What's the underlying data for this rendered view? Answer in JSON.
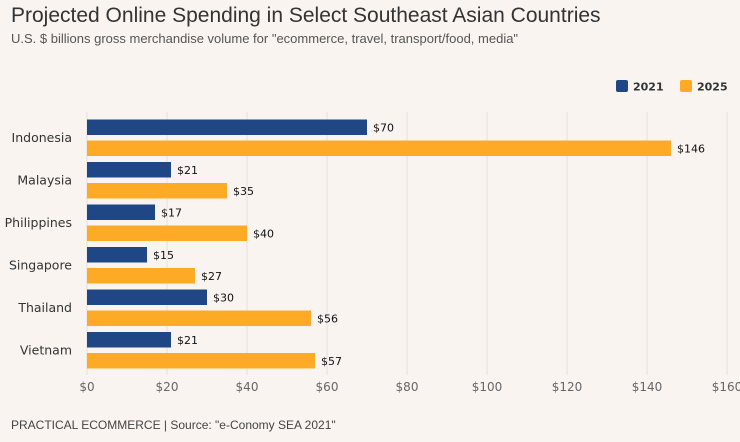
{
  "header": {
    "title": "Projected Online Spending in Select Southeast Asian Countries",
    "subtitle": "U.S. $ billions gross merchandise volume for \"ecommerce, travel, transport/food, media\""
  },
  "footer": {
    "text": "PRACTICAL ECOMMERCE | Source: \"e-Conomy SEA 2021\""
  },
  "colors": {
    "series_2021": "#1f4785",
    "series_2025": "#fdab27",
    "grid": "#e6e1dd",
    "background": "#f9f4f0"
  },
  "chart_data": {
    "type": "bar",
    "orientation": "horizontal",
    "title": "Projected Online Spending in Select Southeast Asian Countries",
    "categories": [
      "Indonesia",
      "Malaysia",
      "Philippines",
      "Singapore",
      "Thailand",
      "Vietnam"
    ],
    "series": [
      {
        "name": "2021",
        "values": [
          70,
          21,
          17,
          15,
          30,
          21
        ],
        "labels": [
          "$70",
          "$21",
          "$17",
          "$15",
          "$30",
          "$21"
        ]
      },
      {
        "name": "2025",
        "values": [
          146,
          35,
          40,
          27,
          56,
          57
        ],
        "labels": [
          "$146",
          "$35",
          "$40",
          "$27",
          "$56",
          "$57"
        ]
      }
    ],
    "xlim": [
      0,
      160
    ],
    "xticks": [
      0,
      20,
      40,
      60,
      80,
      100,
      120,
      140,
      160
    ],
    "xtick_labels": [
      "$0",
      "$20",
      "$40",
      "$60",
      "$80",
      "$100",
      "$120",
      "$140",
      "$160"
    ],
    "legend": "top-right",
    "grid": true
  }
}
